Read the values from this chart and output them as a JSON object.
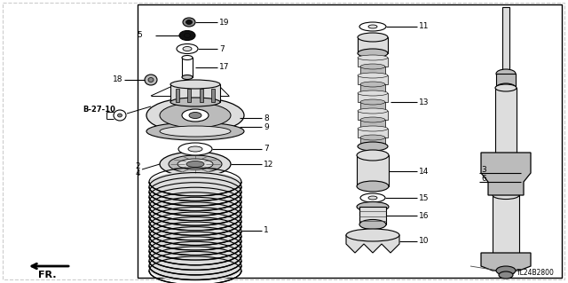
{
  "bg_color": "#ffffff",
  "line_color": "#000000",
  "title_code": "TL24B2800",
  "fr_label": "FR.",
  "ref_label": "B-27-10",
  "gray1": "#bbbbbb",
  "gray2": "#dddddd",
  "gray3": "#888888",
  "lgray": "#cccccc",
  "dgray": "#444444"
}
